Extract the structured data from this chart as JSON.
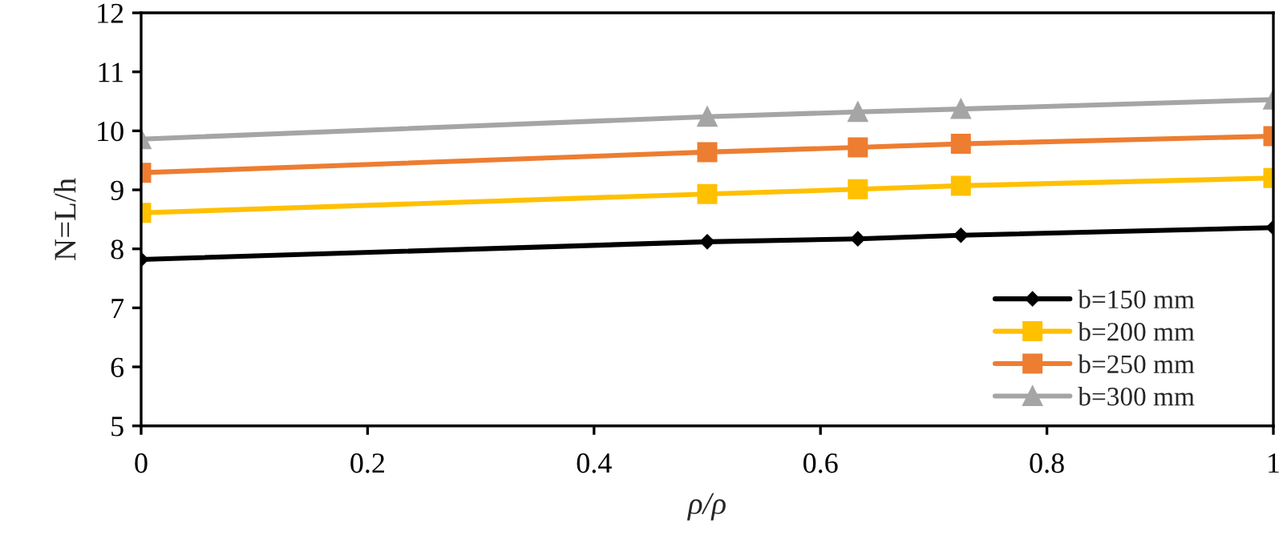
{
  "chart_data": {
    "type": "line",
    "xlabel": "ρ/ρ",
    "ylabel": "N=L/h",
    "xlim": [
      0,
      1
    ],
    "xticks": [
      0,
      0.2,
      0.4,
      0.6,
      0.8,
      1
    ],
    "ylim": [
      5,
      12
    ],
    "yticks": [
      5,
      6,
      7,
      8,
      9,
      10,
      11,
      12
    ],
    "grid": false,
    "legend": "bottom right",
    "line_style": "solid",
    "series": [
      {
        "name": "b=150 mm",
        "color": "#000000",
        "marker": "diamond",
        "x": [
          0,
          0.5,
          0.633,
          0.724,
          1
        ],
        "values": [
          7.82,
          8.12,
          8.17,
          8.23,
          8.36
        ]
      },
      {
        "name": "b=200 mm",
        "color": "#ffc000",
        "marker": "square",
        "x": [
          0,
          0.5,
          0.633,
          0.724,
          1
        ],
        "values": [
          8.61,
          8.93,
          9.01,
          9.07,
          9.2
        ]
      },
      {
        "name": "b=250 mm",
        "color": "#ed7d31",
        "marker": "square",
        "x": [
          0,
          0.5,
          0.633,
          0.724,
          1
        ],
        "values": [
          9.29,
          9.64,
          9.72,
          9.78,
          9.91
        ]
      },
      {
        "name": "b=300 mm",
        "color": "#a5a5a5",
        "marker": "triangle",
        "x": [
          0,
          0.5,
          0.633,
          0.724,
          1
        ],
        "values": [
          9.86,
          10.24,
          10.32,
          10.37,
          10.53
        ]
      }
    ]
  }
}
